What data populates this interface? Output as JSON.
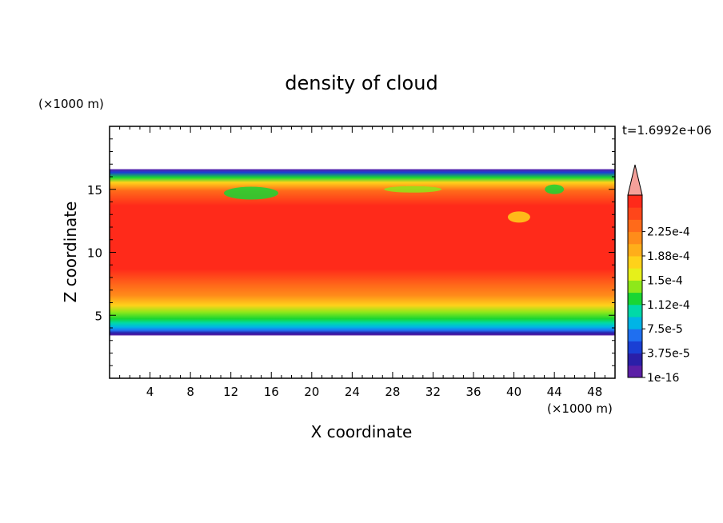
{
  "chart_data": {
    "type": "heatmap",
    "title": "density of cloud",
    "xlabel": "X coordinate",
    "ylabel": "Z coordinate",
    "x_unit": "(×1000 m)",
    "y_unit": "(×1000 m)",
    "time_label": "t=1.6992e+06",
    "xlim": [
      0,
      50
    ],
    "ylim": [
      0,
      20
    ],
    "x_ticks": [
      4,
      8,
      12,
      16,
      20,
      24,
      28,
      32,
      36,
      40,
      44,
      48
    ],
    "y_ticks": [
      5,
      10,
      15
    ],
    "colorbar": {
      "labels": [
        "1e-16",
        "3.75e-5",
        "7.5e-5",
        "1.12e-4",
        "1.5e-4",
        "1.88e-4",
        "2.25e-4"
      ],
      "colors": [
        "#5b1fa6",
        "#2a1fa8",
        "#1a3fd4",
        "#1f6ff0",
        "#00b4e6",
        "#00d9a8",
        "#19d633",
        "#8ee81a",
        "#e6f01a",
        "#ffd21a",
        "#ffae1a",
        "#ff8c1a",
        "#ff6a1a",
        "#ff461a",
        "#ff2a1a"
      ],
      "extend_color": "#f4a09a"
    },
    "cloud_layer": {
      "z_bottom": 3.4,
      "z_top": 16.6,
      "dominant_value": "2.25e-4",
      "layer_bands": [
        {
          "z": 3.7,
          "level": "1e-16"
        },
        {
          "z": 4.2,
          "level": "3.75e-5"
        },
        {
          "z": 4.7,
          "level": "7.5e-5"
        },
        {
          "z": 5.3,
          "level": "1.12e-4"
        },
        {
          "z": 5.9,
          "level": "1.5e-4"
        },
        {
          "z": 6.6,
          "level": "1.88e-4"
        },
        {
          "z": 8.2,
          "level": "2.25e-4"
        }
      ]
    }
  }
}
